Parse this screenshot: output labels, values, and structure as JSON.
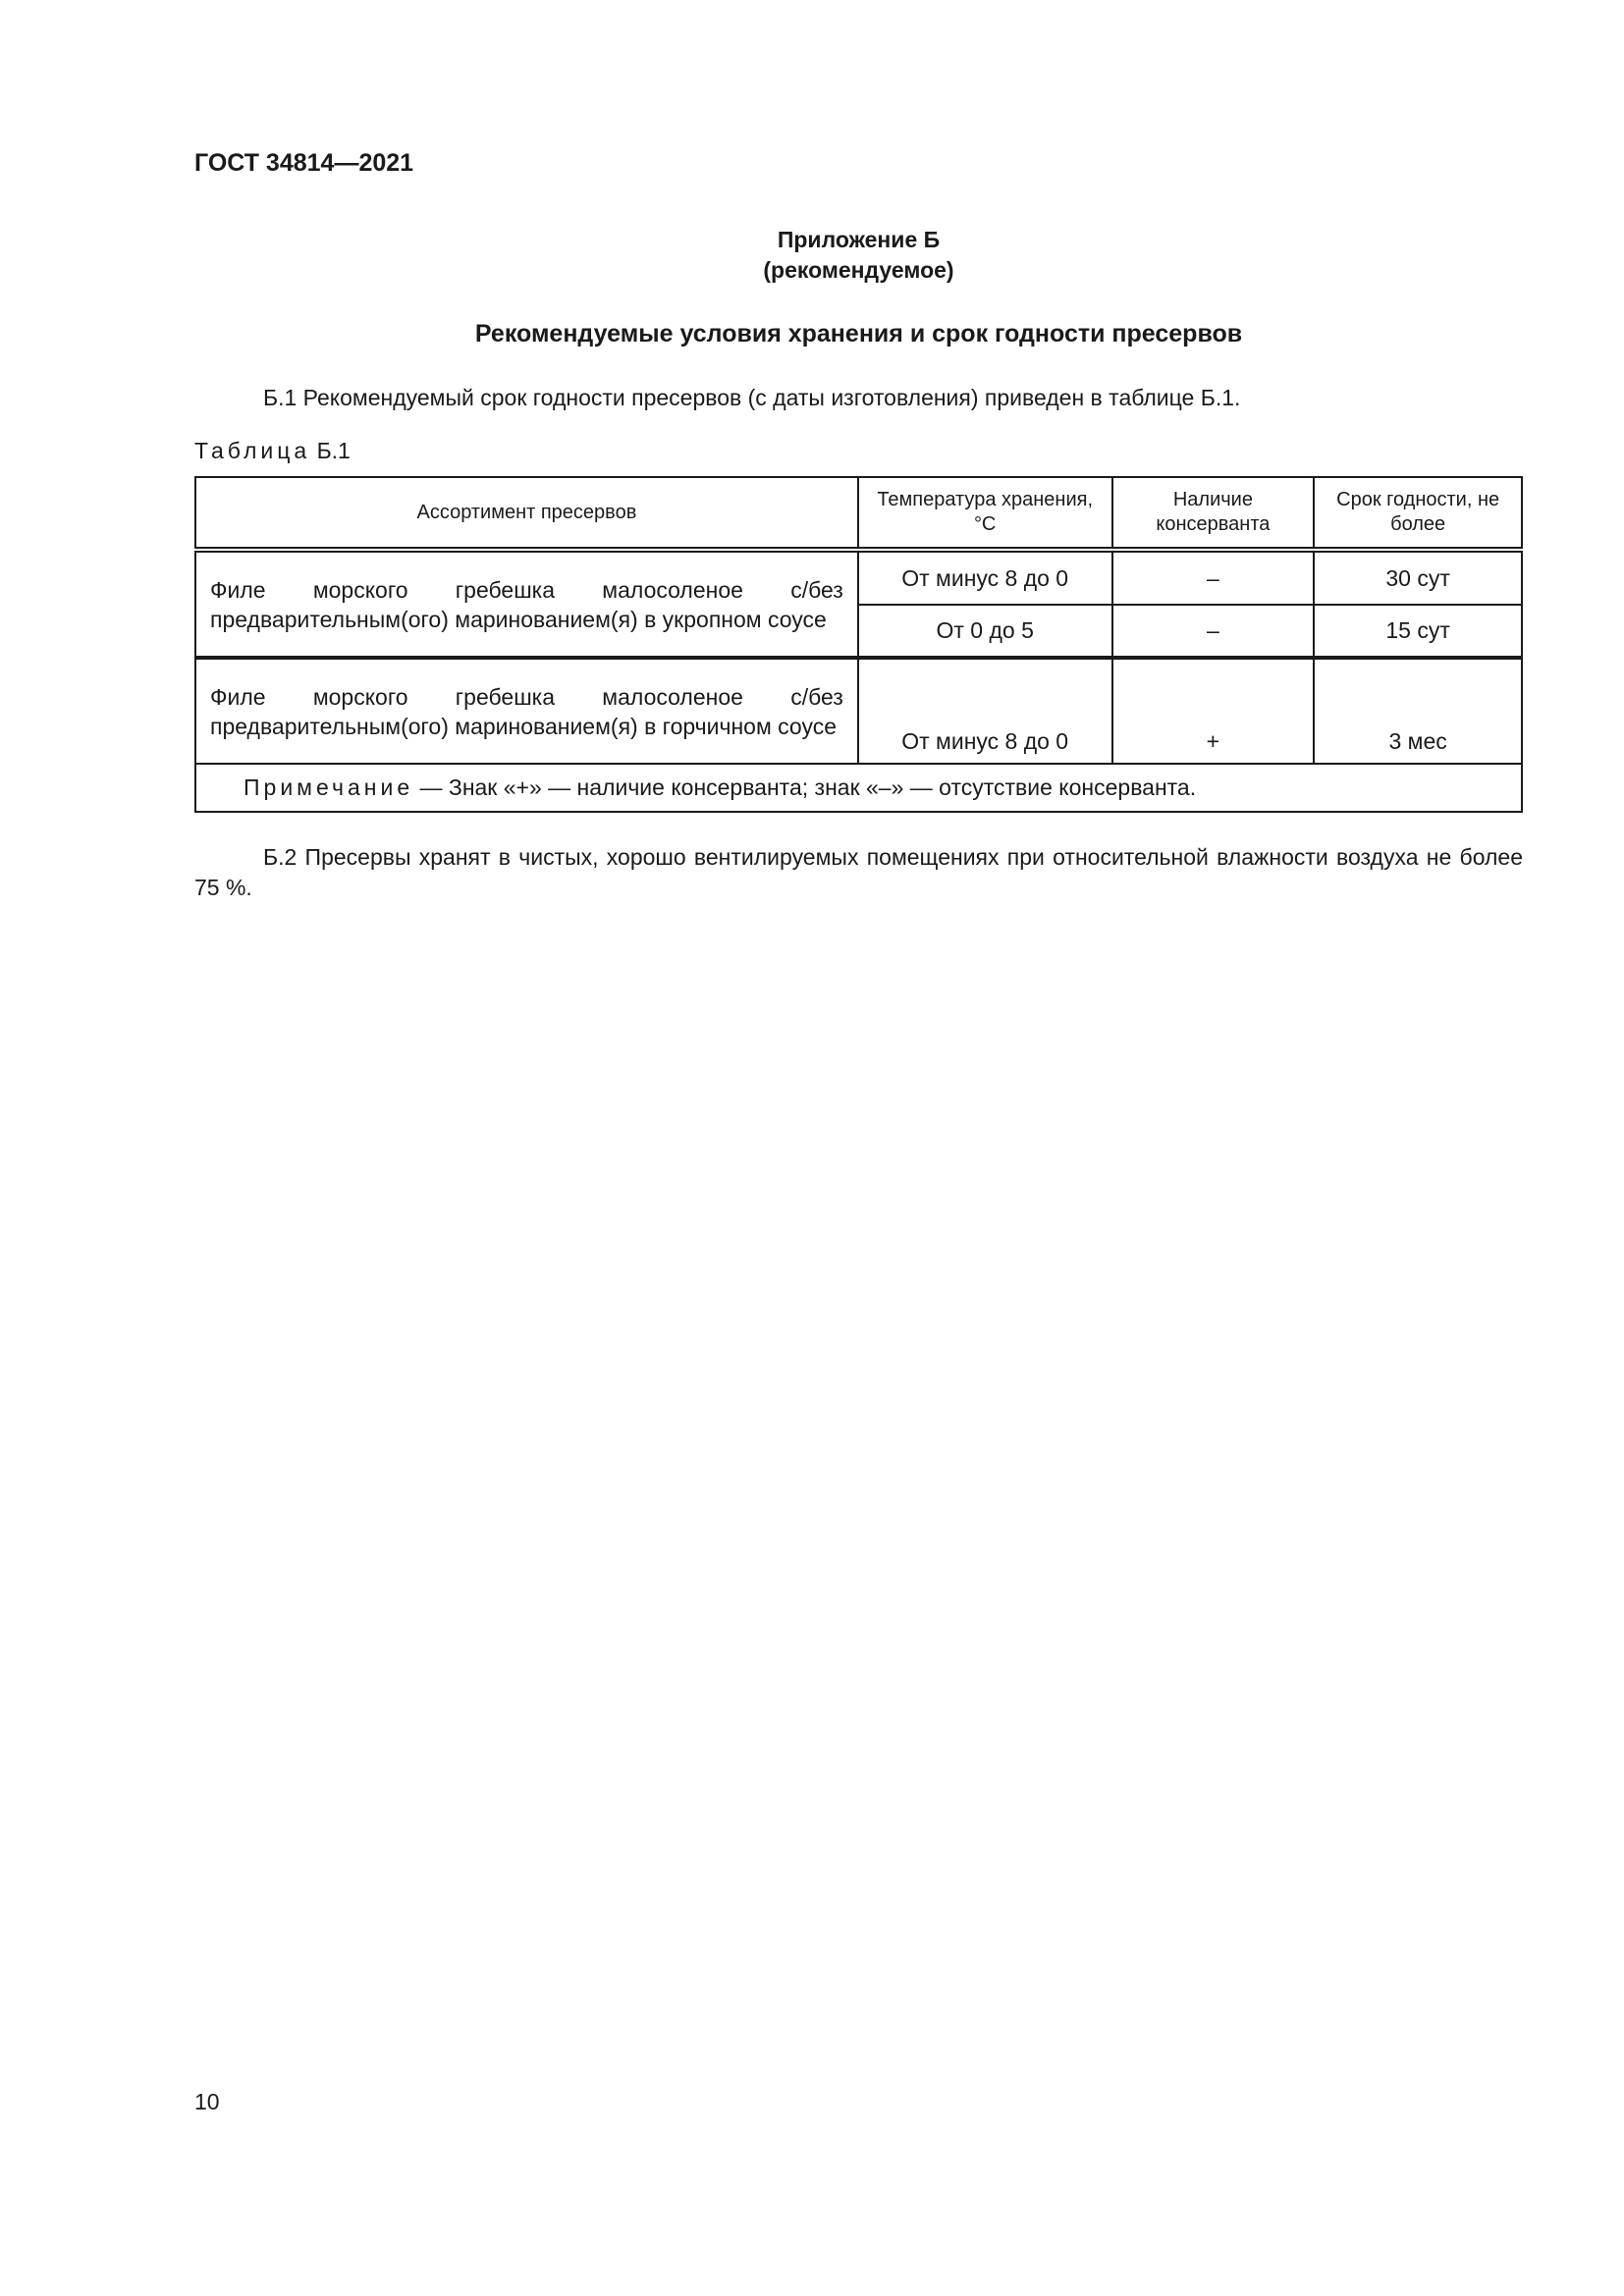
{
  "header": {
    "standard": "ГОСТ 34814—2021"
  },
  "appendix": {
    "title": "Приложение Б",
    "status": "(рекомендуемое)",
    "heading": "Рекомендуемые условия хранения и срок годности пресервов"
  },
  "para1": "Б.1 Рекомендуемый срок годности пресервов (с даты изготовления) приведен в таблице Б.1.",
  "table": {
    "caption_word": "Таблица",
    "caption_num": "Б.1",
    "columns": [
      "Ассортимент пресервов",
      "Температура хранения, °С",
      "Наличие консерванта",
      "Срок годности, не более"
    ],
    "rows": [
      {
        "product": "Филе морского гребешка малосоленое с/без предварительным(ого) маринованием(я) в укропном соусе",
        "sub": [
          {
            "temp": "От минус 8 до 0",
            "preservative": "–",
            "shelf": "30 сут"
          },
          {
            "temp": "От 0 до 5",
            "preservative": "–",
            "shelf": "15 сут"
          }
        ]
      },
      {
        "product": "Филе морского гребешка малосоленое с/без предварительным(ого) маринованием(я) в горчичном соусе",
        "sub": [
          {
            "temp": "От минус 8 до 0",
            "preservative": "+",
            "shelf": "3 мес"
          }
        ]
      }
    ],
    "note_label": "Примечание",
    "note_text": " — Знак «+» — наличие консерванта; знак «–» — отсутствие консерванта."
  },
  "para2": "Б.2 Пресервы хранят в чистых, хорошо вентилируемых помещениях при относительной влажности воздуха не более 75 %.",
  "page_number": "10"
}
